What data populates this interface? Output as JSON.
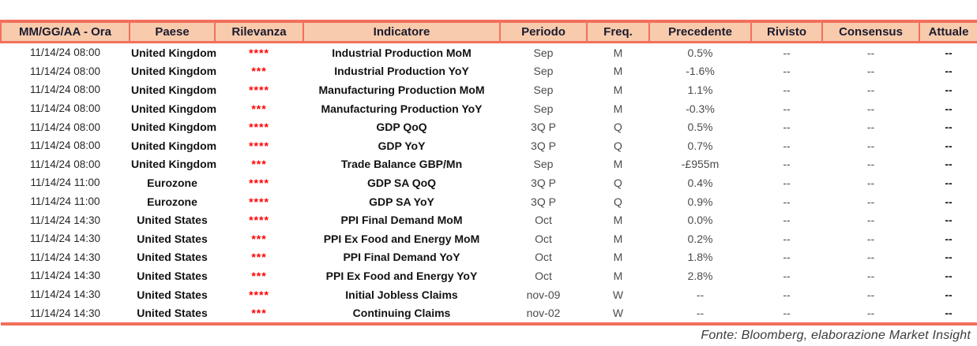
{
  "colors": {
    "header_bg": "#F8CBAD",
    "table_border": "#F1705B",
    "relevance_star": "#FF0000"
  },
  "table": {
    "columns": [
      {
        "key": "datetime",
        "label": "MM/GG/AA - Ora"
      },
      {
        "key": "country",
        "label": "Paese"
      },
      {
        "key": "relevance",
        "label": "Rilevanza"
      },
      {
        "key": "indicator",
        "label": "Indicatore"
      },
      {
        "key": "period",
        "label": "Periodo"
      },
      {
        "key": "freq",
        "label": "Freq."
      },
      {
        "key": "previous",
        "label": "Precedente"
      },
      {
        "key": "revised",
        "label": "Rivisto"
      },
      {
        "key": "consensus",
        "label": "Consensus"
      },
      {
        "key": "actual",
        "label": "Attuale"
      }
    ],
    "rows": [
      {
        "datetime": "11/14/24 08:00",
        "country": "United Kingdom",
        "relevance": "****",
        "indicator": "Industrial Production MoM",
        "period": "Sep",
        "freq": "M",
        "previous": "0.5%",
        "revised": "--",
        "consensus": "--",
        "actual": "--"
      },
      {
        "datetime": "11/14/24 08:00",
        "country": "United Kingdom",
        "relevance": "***",
        "indicator": "Industrial Production YoY",
        "period": "Sep",
        "freq": "M",
        "previous": "-1.6%",
        "revised": "--",
        "consensus": "--",
        "actual": "--"
      },
      {
        "datetime": "11/14/24 08:00",
        "country": "United Kingdom",
        "relevance": "****",
        "indicator": "Manufacturing Production MoM",
        "period": "Sep",
        "freq": "M",
        "previous": "1.1%",
        "revised": "--",
        "consensus": "--",
        "actual": "--"
      },
      {
        "datetime": "11/14/24 08:00",
        "country": "United Kingdom",
        "relevance": "***",
        "indicator": "Manufacturing Production YoY",
        "period": "Sep",
        "freq": "M",
        "previous": "-0.3%",
        "revised": "--",
        "consensus": "--",
        "actual": "--"
      },
      {
        "datetime": "11/14/24 08:00",
        "country": "United Kingdom",
        "relevance": "****",
        "indicator": "GDP QoQ",
        "period": "3Q P",
        "freq": "Q",
        "previous": "0.5%",
        "revised": "--",
        "consensus": "--",
        "actual": "--"
      },
      {
        "datetime": "11/14/24 08:00",
        "country": "United Kingdom",
        "relevance": "****",
        "indicator": "GDP YoY",
        "period": "3Q P",
        "freq": "Q",
        "previous": "0.7%",
        "revised": "--",
        "consensus": "--",
        "actual": "--"
      },
      {
        "datetime": "11/14/24 08:00",
        "country": "United Kingdom",
        "relevance": "***",
        "indicator": "Trade Balance GBP/Mn",
        "period": "Sep",
        "freq": "M",
        "previous": "-£955m",
        "revised": "--",
        "consensus": "--",
        "actual": "--"
      },
      {
        "datetime": "11/14/24 11:00",
        "country": "Eurozone",
        "relevance": "****",
        "indicator": "GDP SA QoQ",
        "period": "3Q P",
        "freq": "Q",
        "previous": "0.4%",
        "revised": "--",
        "consensus": "--",
        "actual": "--"
      },
      {
        "datetime": "11/14/24 11:00",
        "country": "Eurozone",
        "relevance": "****",
        "indicator": "GDP SA YoY",
        "period": "3Q P",
        "freq": "Q",
        "previous": "0.9%",
        "revised": "--",
        "consensus": "--",
        "actual": "--"
      },
      {
        "datetime": "11/14/24 14:30",
        "country": "United States",
        "relevance": "****",
        "indicator": "PPI Final Demand MoM",
        "period": "Oct",
        "freq": "M",
        "previous": "0.0%",
        "revised": "--",
        "consensus": "--",
        "actual": "--"
      },
      {
        "datetime": "11/14/24 14:30",
        "country": "United States",
        "relevance": "***",
        "indicator": "PPI Ex Food and Energy MoM",
        "period": "Oct",
        "freq": "M",
        "previous": "0.2%",
        "revised": "--",
        "consensus": "--",
        "actual": "--"
      },
      {
        "datetime": "11/14/24 14:30",
        "country": "United States",
        "relevance": "***",
        "indicator": "PPI Final Demand YoY",
        "period": "Oct",
        "freq": "M",
        "previous": "1.8%",
        "revised": "--",
        "consensus": "--",
        "actual": "--"
      },
      {
        "datetime": "11/14/24 14:30",
        "country": "United States",
        "relevance": "***",
        "indicator": "PPI Ex Food and Energy YoY",
        "period": "Oct",
        "freq": "M",
        "previous": "2.8%",
        "revised": "--",
        "consensus": "--",
        "actual": "--"
      },
      {
        "datetime": "11/14/24 14:30",
        "country": "United States",
        "relevance": "****",
        "indicator": "Initial Jobless Claims",
        "period": "nov-09",
        "freq": "W",
        "previous": "--",
        "revised": "--",
        "consensus": "--",
        "actual": "--"
      },
      {
        "datetime": "11/14/24 14:30",
        "country": "United States",
        "relevance": "***",
        "indicator": "Continuing Claims",
        "period": "nov-02",
        "freq": "W",
        "previous": "--",
        "revised": "--",
        "consensus": "--",
        "actual": "--"
      }
    ]
  },
  "footer": {
    "source_note": "Fonte: Bloomberg, elaborazione Market Insight"
  }
}
